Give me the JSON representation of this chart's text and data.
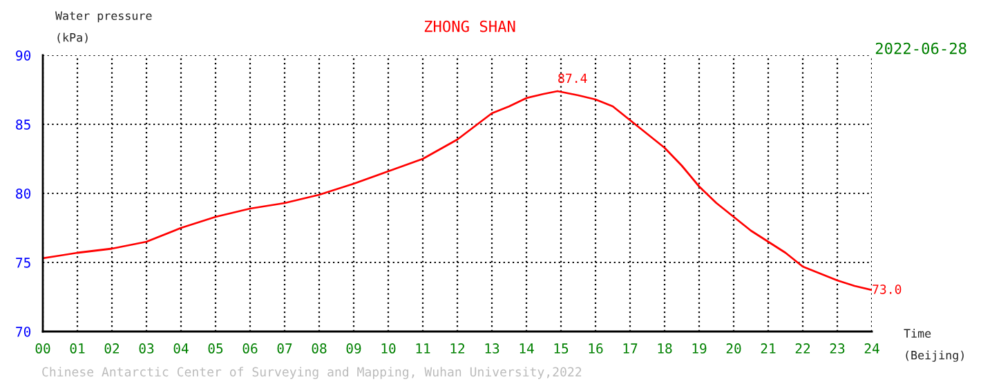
{
  "chart_data": {
    "type": "line",
    "title": "ZHONG SHAN",
    "subtitle": "2022-06-28",
    "ylabel": "Water pressure\n(kPa)",
    "xlabel": "Time\n(Beijing)",
    "x": [
      0,
      0.5,
      1,
      2,
      3,
      4,
      5,
      6,
      7,
      8,
      9,
      10,
      11,
      12,
      13,
      13.5,
      14,
      14.5,
      14.9,
      15.5,
      16,
      16.5,
      17,
      17.5,
      18,
      18.5,
      19,
      19.5,
      20,
      20.5,
      21,
      21.5,
      22,
      22.5,
      23,
      23.5,
      24
    ],
    "series": [
      {
        "color": "#ff0000",
        "values": [
          75.3,
          75.5,
          75.7,
          76.0,
          76.5,
          77.5,
          78.3,
          78.9,
          79.3,
          79.9,
          80.7,
          81.6,
          82.5,
          83.9,
          85.8,
          86.3,
          86.9,
          87.2,
          87.4,
          87.1,
          86.8,
          86.3,
          85.3,
          84.3,
          83.3,
          82.0,
          80.5,
          79.3,
          78.3,
          77.3,
          76.5,
          75.7,
          74.7,
          74.2,
          73.7,
          73.3,
          73.0
        ]
      }
    ],
    "xlim": [
      0,
      24
    ],
    "ylim": [
      70,
      90
    ],
    "xticks": [
      {
        "value": 0,
        "label": "00"
      },
      {
        "value": 1,
        "label": "01"
      },
      {
        "value": 2,
        "label": "02"
      },
      {
        "value": 3,
        "label": "03"
      },
      {
        "value": 4,
        "label": "04"
      },
      {
        "value": 5,
        "label": "05"
      },
      {
        "value": 6,
        "label": "06"
      },
      {
        "value": 7,
        "label": "07"
      },
      {
        "value": 8,
        "label": "08"
      },
      {
        "value": 9,
        "label": "09"
      },
      {
        "value": 10,
        "label": "10"
      },
      {
        "value": 11,
        "label": "11"
      },
      {
        "value": 12,
        "label": "12"
      },
      {
        "value": 13,
        "label": "13"
      },
      {
        "value": 14,
        "label": "14"
      },
      {
        "value": 15,
        "label": "15"
      },
      {
        "value": 16,
        "label": "16"
      },
      {
        "value": 17,
        "label": "17"
      },
      {
        "value": 18,
        "label": "18"
      },
      {
        "value": 19,
        "label": "19"
      },
      {
        "value": 20,
        "label": "20"
      },
      {
        "value": 21,
        "label": "21"
      },
      {
        "value": 22,
        "label": "22"
      },
      {
        "value": 23,
        "label": "23"
      },
      {
        "value": 24,
        "label": "24"
      }
    ],
    "yticks": [
      70,
      75,
      80,
      85,
      90
    ],
    "grid": true,
    "legend": false,
    "marker": "none",
    "line_style": "solid",
    "annotations": [
      {
        "text": "87.4",
        "x": 14.9,
        "y": 87.4
      },
      {
        "text": "73.0",
        "x": 24,
        "y": 73.0
      },
      "Chinese Antarctic Center of Surveying and Mapping, Wuhan University,2022"
    ]
  }
}
